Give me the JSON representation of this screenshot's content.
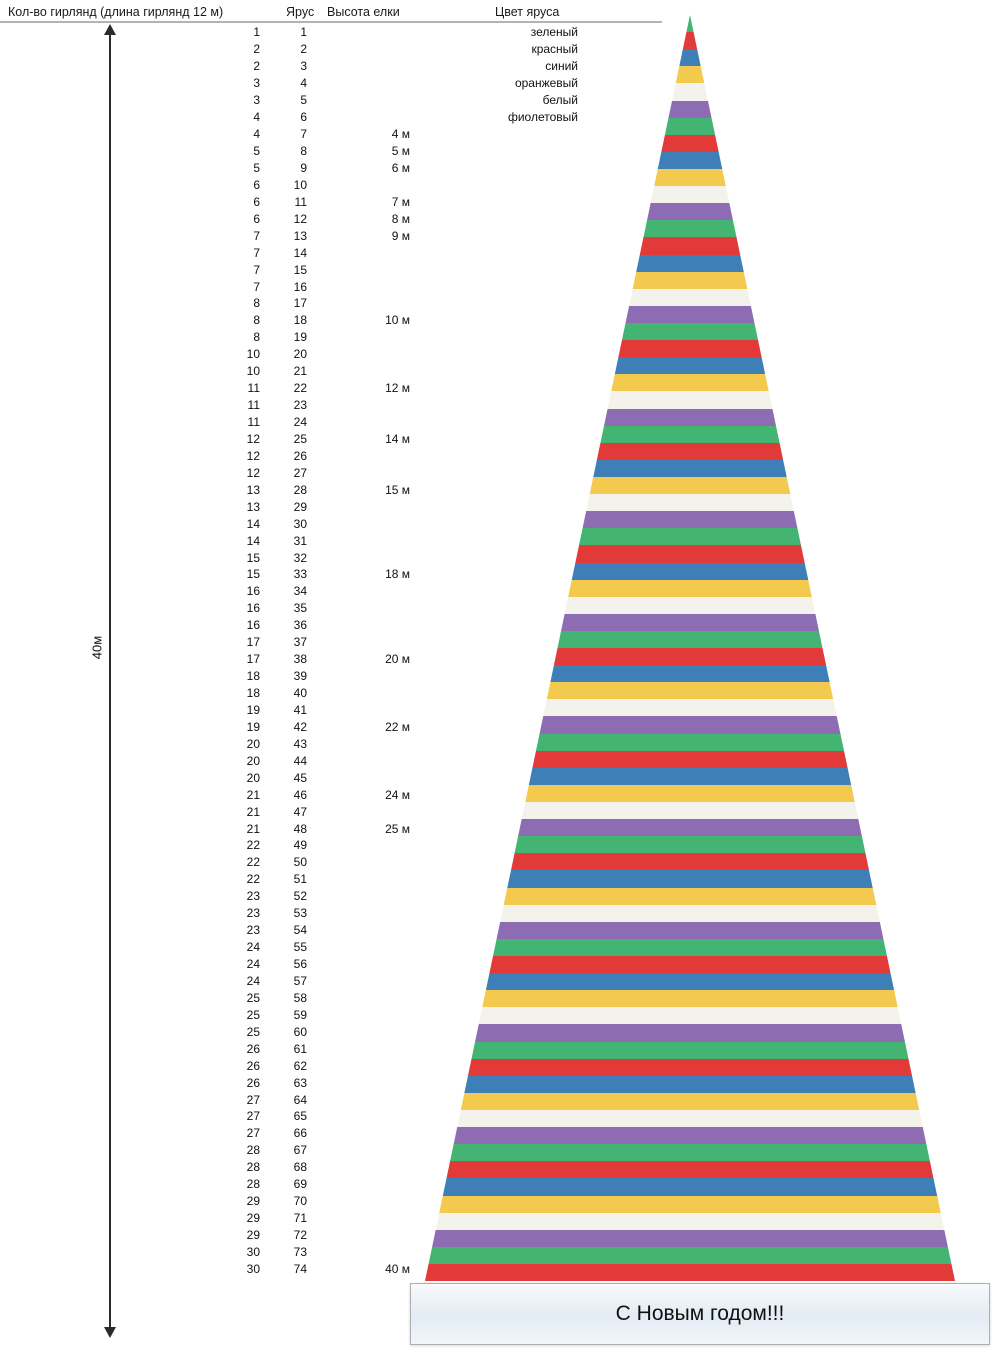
{
  "header": {
    "col_garlands": "Кол-во гирлянд (длина гирлянд 12 м)",
    "col_tier": "Ярус",
    "col_height": "Высота елки",
    "col_color": "Цвет яруса"
  },
  "measure": {
    "label": "40м"
  },
  "banner": {
    "text": "С Новым годом!!!"
  },
  "tree": {
    "tiers": 74,
    "total_height": "40 м",
    "color_cycle": [
      {
        "name": "зеленый",
        "hex": "#43b471"
      },
      {
        "name": "красный",
        "hex": "#e23a38"
      },
      {
        "name": "синий",
        "hex": "#3f7fb8"
      },
      {
        "name": "оранжевый",
        "hex": "#f3ca4d"
      },
      {
        "name": "белый",
        "hex": "#f3f3ec"
      },
      {
        "name": "фиолетовый",
        "hex": "#8e6cb4"
      }
    ]
  },
  "chart_data": {
    "type": "table",
    "columns": [
      "Кол-во гирлянд (длина гирлянд 12 м)",
      "Ярус",
      "Высота елки",
      "Цвет яруса"
    ],
    "rows": [
      [
        1,
        1,
        "",
        "зеленый"
      ],
      [
        2,
        2,
        "",
        "красный"
      ],
      [
        2,
        3,
        "",
        "синий"
      ],
      [
        3,
        4,
        "",
        "оранжевый"
      ],
      [
        3,
        5,
        "",
        "белый"
      ],
      [
        4,
        6,
        "",
        "фиолетовый"
      ],
      [
        4,
        7,
        "4 м",
        ""
      ],
      [
        5,
        8,
        "5 м",
        ""
      ],
      [
        5,
        9,
        "6 м",
        ""
      ],
      [
        6,
        10,
        "",
        ""
      ],
      [
        6,
        11,
        "7 м",
        ""
      ],
      [
        6,
        12,
        "8 м",
        ""
      ],
      [
        7,
        13,
        "9 м",
        ""
      ],
      [
        7,
        14,
        "",
        ""
      ],
      [
        7,
        15,
        "",
        ""
      ],
      [
        7,
        16,
        "",
        ""
      ],
      [
        8,
        17,
        "",
        ""
      ],
      [
        8,
        18,
        "10 м",
        ""
      ],
      [
        8,
        19,
        "",
        ""
      ],
      [
        10,
        20,
        "",
        ""
      ],
      [
        10,
        21,
        "",
        ""
      ],
      [
        11,
        22,
        "12 м",
        ""
      ],
      [
        11,
        23,
        "",
        ""
      ],
      [
        11,
        24,
        "",
        ""
      ],
      [
        12,
        25,
        "14 м",
        ""
      ],
      [
        12,
        26,
        "",
        ""
      ],
      [
        12,
        27,
        "",
        ""
      ],
      [
        13,
        28,
        "15 м",
        ""
      ],
      [
        13,
        29,
        "",
        ""
      ],
      [
        14,
        30,
        "",
        ""
      ],
      [
        14,
        31,
        "",
        ""
      ],
      [
        15,
        32,
        "",
        ""
      ],
      [
        15,
        33,
        "18 м",
        ""
      ],
      [
        16,
        34,
        "",
        ""
      ],
      [
        16,
        35,
        "",
        ""
      ],
      [
        16,
        36,
        "",
        ""
      ],
      [
        17,
        37,
        "",
        ""
      ],
      [
        17,
        38,
        "20 м",
        ""
      ],
      [
        18,
        39,
        "",
        ""
      ],
      [
        18,
        40,
        "",
        ""
      ],
      [
        19,
        41,
        "",
        ""
      ],
      [
        19,
        42,
        "22 м",
        ""
      ],
      [
        20,
        43,
        "",
        ""
      ],
      [
        20,
        44,
        "",
        ""
      ],
      [
        20,
        45,
        "",
        ""
      ],
      [
        21,
        46,
        "24 м",
        ""
      ],
      [
        21,
        47,
        "",
        ""
      ],
      [
        21,
        48,
        "25 м",
        ""
      ],
      [
        22,
        49,
        "",
        ""
      ],
      [
        22,
        50,
        "",
        ""
      ],
      [
        22,
        51,
        "",
        ""
      ],
      [
        23,
        52,
        "",
        ""
      ],
      [
        23,
        53,
        "",
        ""
      ],
      [
        23,
        54,
        "",
        ""
      ],
      [
        24,
        55,
        "",
        ""
      ],
      [
        24,
        56,
        "",
        ""
      ],
      [
        24,
        57,
        "",
        ""
      ],
      [
        25,
        58,
        "",
        ""
      ],
      [
        25,
        59,
        "",
        ""
      ],
      [
        25,
        60,
        "",
        ""
      ],
      [
        26,
        61,
        "",
        ""
      ],
      [
        26,
        62,
        "",
        ""
      ],
      [
        26,
        63,
        "",
        ""
      ],
      [
        27,
        64,
        "",
        ""
      ],
      [
        27,
        65,
        "",
        ""
      ],
      [
        27,
        66,
        "",
        ""
      ],
      [
        28,
        67,
        "",
        ""
      ],
      [
        28,
        68,
        "",
        ""
      ],
      [
        28,
        69,
        "",
        ""
      ],
      [
        29,
        70,
        "",
        ""
      ],
      [
        29,
        71,
        "",
        ""
      ],
      [
        29,
        72,
        "",
        ""
      ],
      [
        30,
        73,
        "",
        ""
      ],
      [
        30,
        74,
        "40 м",
        ""
      ]
    ]
  }
}
